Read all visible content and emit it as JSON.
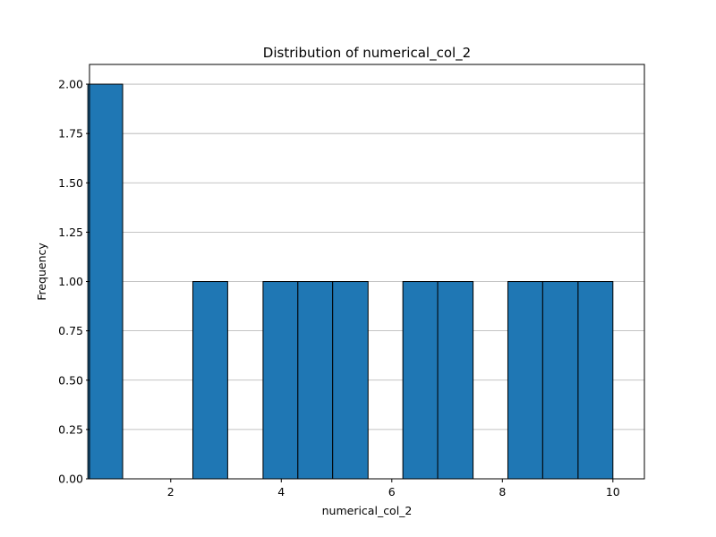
{
  "chart_data": {
    "type": "bar",
    "title": "Distribution of numerical_col_2",
    "xlabel": "numerical_col_2",
    "ylabel": "Frequency",
    "xlim": [
      0.53,
      10.57
    ],
    "ylim": [
      0,
      2.1
    ],
    "bar_color": "#1f77b4",
    "edge_color": "#000000",
    "grid": "y",
    "bins": [
      {
        "start": 0.5,
        "end": 1.13,
        "count": 2
      },
      {
        "start": 1.13,
        "end": 1.77,
        "count": 0
      },
      {
        "start": 1.77,
        "end": 2.4,
        "count": 0
      },
      {
        "start": 2.4,
        "end": 3.03,
        "count": 1
      },
      {
        "start": 3.03,
        "end": 3.67,
        "count": 0
      },
      {
        "start": 3.67,
        "end": 4.3,
        "count": 1
      },
      {
        "start": 4.3,
        "end": 4.93,
        "count": 1
      },
      {
        "start": 4.93,
        "end": 5.57,
        "count": 1
      },
      {
        "start": 5.57,
        "end": 6.2,
        "count": 0
      },
      {
        "start": 6.2,
        "end": 6.83,
        "count": 1
      },
      {
        "start": 6.83,
        "end": 7.47,
        "count": 1
      },
      {
        "start": 7.47,
        "end": 8.1,
        "count": 0
      },
      {
        "start": 8.1,
        "end": 8.73,
        "count": 1
      },
      {
        "start": 8.73,
        "end": 9.37,
        "count": 1
      },
      {
        "start": 9.37,
        "end": 10.0,
        "count": 1
      }
    ],
    "xticks": [
      {
        "value": 2,
        "label": "2"
      },
      {
        "value": 4,
        "label": "4"
      },
      {
        "value": 6,
        "label": "6"
      },
      {
        "value": 8,
        "label": "8"
      },
      {
        "value": 10,
        "label": "10"
      }
    ],
    "yticks": [
      {
        "value": 0,
        "label": "0.00"
      },
      {
        "value": 0.25,
        "label": "0.25"
      },
      {
        "value": 0.5,
        "label": "0.50"
      },
      {
        "value": 0.75,
        "label": "0.75"
      },
      {
        "value": 1.0,
        "label": "1.00"
      },
      {
        "value": 1.25,
        "label": "1.25"
      },
      {
        "value": 1.5,
        "label": "1.50"
      },
      {
        "value": 1.75,
        "label": "1.75"
      },
      {
        "value": 2.0,
        "label": "2.00"
      }
    ]
  }
}
